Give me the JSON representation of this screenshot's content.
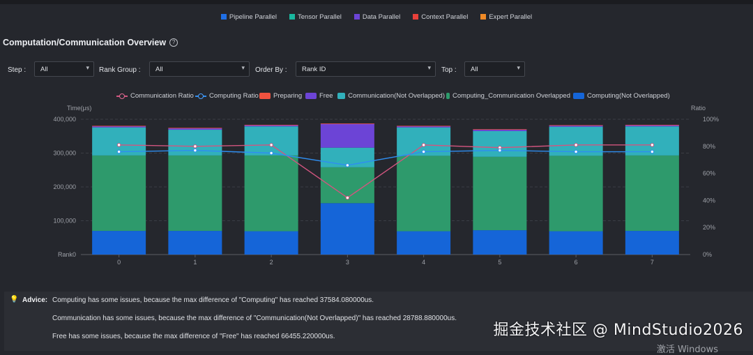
{
  "top_legend": [
    {
      "label": "Pipeline Parallel",
      "color": "#1f6fe6"
    },
    {
      "label": "Tensor Parallel",
      "color": "#19b79e"
    },
    {
      "label": "Data Parallel",
      "color": "#6c44d6"
    },
    {
      "label": "Context Parallel",
      "color": "#e8403a"
    },
    {
      "label": "Expert Parallel",
      "color": "#ef8a26"
    }
  ],
  "section_title": "Computation/Communication Overview",
  "filters": {
    "step_label": "Step :",
    "step_value": "All",
    "rank_group_label": "Rank Group :",
    "rank_group_value": "All",
    "order_by_label": "Order By :",
    "order_by_value": "Rank ID",
    "top_label": "Top :",
    "top_value": "All"
  },
  "chart_legend": [
    {
      "label": "Communication Ratio",
      "kind": "line",
      "color": "#d2557f"
    },
    {
      "label": "Computing Ratio",
      "kind": "line",
      "color": "#2f8ef0"
    },
    {
      "label": "Preparing",
      "kind": "bar",
      "color": "#f0523f"
    },
    {
      "label": "Free",
      "kind": "bar",
      "color": "#6c44d6"
    },
    {
      "label": "Communication(Not Overlapped)",
      "kind": "bar",
      "color": "#31b0bb"
    },
    {
      "label": "Computing_Communication Overlapped",
      "kind": "bar",
      "color": "#2e9a6c"
    },
    {
      "label": "Computing(Not Overlapped)",
      "kind": "bar",
      "color": "#1565d8"
    }
  ],
  "chart_data": {
    "type": "bar",
    "stacked": true,
    "ylabel": "Time(μs)",
    "y2label": "Ratio",
    "xlabel": "Rank0",
    "categories": [
      "0",
      "1",
      "2",
      "3",
      "4",
      "5",
      "6",
      "7"
    ],
    "ylim": [
      0,
      400000
    ],
    "y_ticks": [
      "Rank0",
      "100,000",
      "200,000",
      "300,000",
      "400,000"
    ],
    "y2lim": [
      0,
      100
    ],
    "y2_ticks": [
      "0%",
      "20%",
      "40%",
      "60%",
      "80%",
      "100%"
    ],
    "series": [
      {
        "name": "Computing(Not Overlapped)",
        "color": "#1565d8",
        "values": [
          70000,
          70000,
          69000,
          152000,
          69000,
          72000,
          69000,
          70000
        ]
      },
      {
        "name": "Computing_Communication Overlapped",
        "color": "#2e9a6c",
        "values": [
          223000,
          223000,
          224000,
          106000,
          223000,
          217000,
          223000,
          223000
        ]
      },
      {
        "name": "Communication(Not Overlapped)",
        "color": "#31b0bb",
        "values": [
          83000,
          76000,
          86000,
          58000,
          84000,
          76000,
          86000,
          86000
        ]
      },
      {
        "name": "Free",
        "color": "#6c44d6",
        "values": [
          4000,
          5000,
          4000,
          71000,
          4000,
          5000,
          4000,
          4000
        ]
      },
      {
        "name": "Preparing",
        "color": "#f0523f",
        "values": [
          600,
          600,
          600,
          600,
          600,
          600,
          600,
          600
        ]
      }
    ],
    "lines": [
      {
        "name": "Communication Ratio",
        "color": "#d2557f",
        "values": [
          81,
          80,
          81,
          42,
          81,
          79,
          81,
          81
        ]
      },
      {
        "name": "Computing Ratio",
        "color": "#2f8ef0",
        "values": [
          76,
          77,
          75,
          66,
          76,
          77,
          76,
          76
        ]
      }
    ],
    "grid": true
  },
  "advice": {
    "label": "Advice:",
    "lines": [
      "Computing has some issues, because the max difference of \"Computing\" has reached 37584.080000us.",
      "Communication has some issues, because the max difference of \"Communication(Not Overlapped)\" has reached 28788.880000us.",
      "Free has some issues, because the max difference of \"Free\" has reached 66455.220000us."
    ]
  },
  "watermark": "掘金技术社区 @ MindStudio2026",
  "os_watermark": "激活 Windows"
}
